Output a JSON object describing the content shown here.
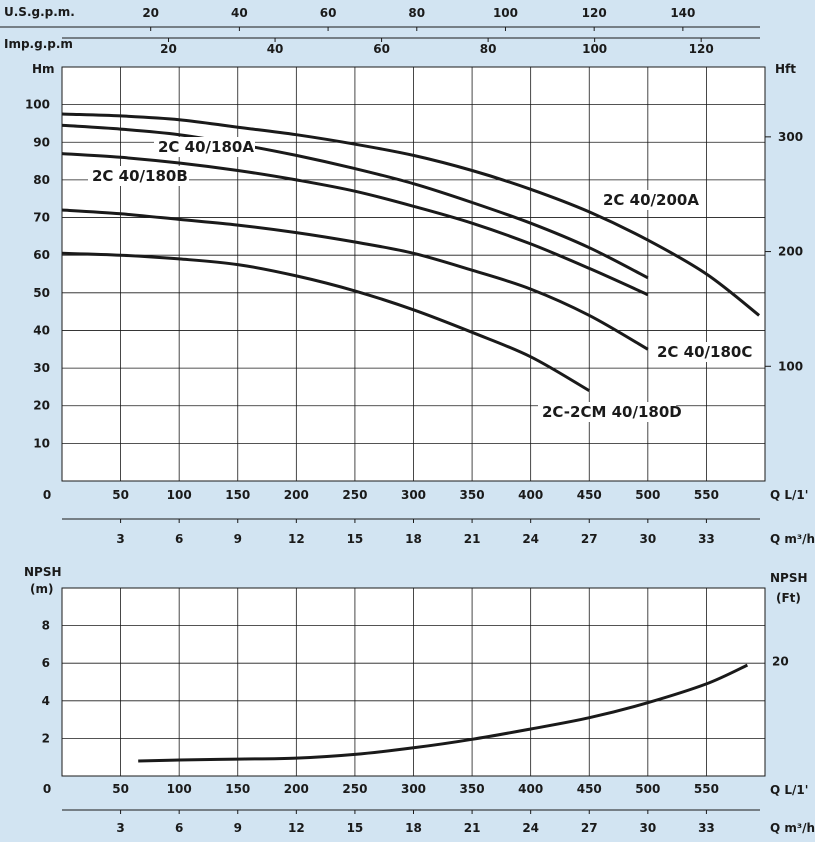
{
  "chart_data": [
    {
      "type": "line",
      "title": "",
      "x_axis_bottom": {
        "label": "Q L/1'",
        "range": [
          0,
          600
        ],
        "ticks": [
          0,
          50,
          100,
          150,
          200,
          250,
          300,
          350,
          400,
          450,
          500,
          550
        ]
      },
      "x_axis_secondary_bottom": {
        "label": "Q m³/h",
        "ticks": [
          3,
          6,
          9,
          12,
          15,
          18,
          21,
          24,
          27,
          30,
          33
        ]
      },
      "x_axis_top": {
        "label": "U.S.g.p.m.",
        "ticks": [
          20,
          40,
          60,
          80,
          100,
          120,
          140
        ]
      },
      "x_axis_top_secondary": {
        "label": "Imp.g.p.m",
        "ticks": [
          20,
          40,
          60,
          80,
          100,
          120
        ]
      },
      "y_axis_left": {
        "label": "Hm",
        "range": [
          0,
          110
        ],
        "ticks": [
          10,
          20,
          30,
          40,
          50,
          60,
          70,
          80,
          90,
          100
        ]
      },
      "y_axis_right": {
        "label": "Hft",
        "ticks": [
          100,
          200,
          300
        ]
      },
      "grid": true,
      "series": [
        {
          "name": "2C 40/200A",
          "x": [
            0,
            50,
            100,
            150,
            200,
            250,
            300,
            350,
            400,
            450,
            500,
            550,
            595
          ],
          "y": [
            97.5,
            97,
            96,
            94,
            92,
            89.5,
            86.5,
            82.5,
            77.5,
            71.5,
            64,
            55,
            44
          ]
        },
        {
          "name": "2C 40/180A",
          "x": [
            0,
            50,
            100,
            150,
            200,
            250,
            300,
            350,
            400,
            450,
            500
          ],
          "y": [
            94.5,
            93.5,
            92,
            89.5,
            86.5,
            83,
            79,
            74,
            68.5,
            62,
            54
          ]
        },
        {
          "name": "2C 40/180B",
          "x": [
            0,
            50,
            100,
            150,
            200,
            250,
            300,
            350,
            400,
            450,
            500
          ],
          "y": [
            87,
            86,
            84.5,
            82.5,
            80,
            77,
            73,
            68.5,
            63,
            56.5,
            49.5
          ]
        },
        {
          "name": "2C 40/180C",
          "x": [
            0,
            50,
            100,
            150,
            200,
            250,
            300,
            350,
            400,
            450,
            500
          ],
          "y": [
            72,
            71,
            69.5,
            68,
            66,
            63.5,
            60.5,
            56,
            51,
            44,
            35
          ]
        },
        {
          "name": "2C-2CM 40/180D",
          "x": [
            0,
            50,
            100,
            150,
            200,
            250,
            300,
            350,
            400,
            450
          ],
          "y": [
            60.5,
            60,
            59,
            57.5,
            54.5,
            50.5,
            45.5,
            39.5,
            33,
            24
          ]
        }
      ]
    },
    {
      "type": "line",
      "title": "",
      "x_axis_bottom": {
        "label": "Q L/1'",
        "range": [
          0,
          600
        ],
        "ticks": [
          0,
          50,
          100,
          150,
          200,
          250,
          300,
          350,
          400,
          450,
          500,
          550
        ]
      },
      "x_axis_secondary_bottom": {
        "label": "Q m³/h",
        "ticks": [
          3,
          6,
          9,
          12,
          15,
          18,
          21,
          24,
          27,
          30,
          33
        ]
      },
      "y_axis_left": {
        "label_line1": "NPSH",
        "label_line2": "(m)",
        "range": [
          0,
          10
        ],
        "ticks": [
          2,
          4,
          6,
          8
        ]
      },
      "y_axis_right": {
        "label_line1": "NPSH",
        "label_line2": "(Ft)",
        "ticks": [
          20
        ]
      },
      "grid": true,
      "series": [
        {
          "x": [
            65,
            100,
            150,
            200,
            250,
            300,
            350,
            400,
            450,
            500,
            550,
            585
          ],
          "y": [
            0.8,
            0.85,
            0.9,
            0.95,
            1.15,
            1.5,
            1.95,
            2.5,
            3.1,
            3.9,
            4.9,
            5.9
          ]
        }
      ]
    }
  ]
}
